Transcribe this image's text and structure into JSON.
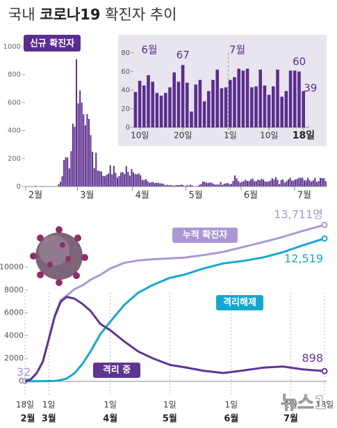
{
  "header": {
    "title_parts": [
      "국내",
      "코로나19",
      "확진자 추이"
    ]
  },
  "credit": "뉴스1",
  "chart_data": [
    {
      "type": "bar",
      "label": "신규 확진자",
      "color": "#5b2d8e",
      "values": [
        1,
        3,
        0,
        1,
        2,
        5,
        1,
        0,
        3,
        0,
        1,
        0,
        0,
        0,
        0,
        1,
        1,
        1,
        15,
        34,
        74,
        190,
        210,
        207,
        130,
        253,
        449,
        427,
        909,
        595,
        686,
        600,
        516,
        438,
        518,
        483,
        367,
        248,
        131,
        242,
        114,
        110,
        107,
        76,
        74,
        84,
        93,
        152,
        87,
        147,
        98,
        64,
        76,
        100,
        104,
        91,
        146,
        105,
        78,
        125,
        101,
        89,
        86,
        94,
        81,
        47,
        47,
        53,
        39,
        27,
        30,
        32,
        25,
        27,
        27,
        22,
        22,
        18,
        8,
        13,
        9,
        11,
        8,
        6,
        10,
        10,
        10,
        14,
        9,
        4,
        9,
        6,
        13,
        8,
        3,
        2,
        4,
        12,
        18,
        34,
        35,
        27,
        26,
        29,
        27,
        19,
        13,
        15,
        13,
        32,
        12,
        20,
        23,
        25,
        16,
        19,
        40,
        79,
        58,
        39,
        27,
        35,
        38,
        49,
        39,
        39,
        51,
        57,
        38,
        38,
        50,
        45,
        56,
        49,
        37,
        34,
        37,
        43,
        59,
        49,
        67,
        48,
        17,
        46,
        51,
        28,
        39,
        51,
        62,
        42,
        43,
        51,
        54,
        63,
        61,
        63,
        43,
        44,
        62,
        45,
        35,
        44,
        62,
        33,
        39,
        61,
        61,
        60,
        39
      ],
      "xlim": [
        0,
        169
      ],
      "xticks": [
        {
          "value": 0,
          "label": "2월"
        },
        {
          "value": 29,
          "label": "3월"
        },
        {
          "value": 60,
          "label": "4월"
        },
        {
          "value": 90,
          "label": "5월"
        },
        {
          "value": 121,
          "label": "6월"
        },
        {
          "value": 151,
          "label": "7월"
        }
      ],
      "ylim": [
        0,
        1000
      ],
      "yticks": [
        0,
        200,
        400,
        600,
        800,
        1000
      ]
    },
    {
      "type": "bar",
      "color": "#5b2d8e",
      "values": [
        38,
        50,
        45,
        56,
        49,
        37,
        34,
        37,
        43,
        59,
        49,
        67,
        48,
        17,
        46,
        51,
        28,
        39,
        51,
        62,
        42,
        43,
        51,
        54,
        63,
        61,
        63,
        43,
        44,
        62,
        45,
        35,
        44,
        62,
        33,
        39,
        61,
        61,
        60,
        39
      ],
      "value_labels": [
        null,
        null,
        null,
        null,
        null,
        null,
        null,
        null,
        null,
        null,
        null,
        "67",
        null,
        null,
        null,
        null,
        null,
        null,
        null,
        null,
        null,
        null,
        null,
        null,
        null,
        null,
        null,
        null,
        null,
        null,
        null,
        null,
        null,
        null,
        null,
        null,
        null,
        null,
        "60",
        "39"
      ],
      "month_labels": [
        "6월",
        "7월"
      ],
      "xlim": [
        0,
        40
      ],
      "xticks": [
        {
          "value": 1,
          "label": "10일"
        },
        {
          "value": 11,
          "label": "20일"
        },
        {
          "value": 22,
          "label": "1일"
        },
        {
          "value": 31,
          "label": "10일"
        },
        {
          "value": 39,
          "label": "18일"
        }
      ],
      "ylim": [
        0,
        80
      ],
      "yticks": [
        0,
        20,
        40,
        60,
        80
      ]
    },
    {
      "type": "line",
      "grid": true,
      "x": [
        0,
        3,
        6,
        9,
        12,
        15,
        18,
        21,
        25,
        29,
        33,
        38,
        43,
        50,
        57,
        64,
        73,
        80,
        90,
        100,
        110,
        120,
        130,
        140,
        151
      ],
      "xlim": [
        0,
        151
      ],
      "xticks": [
        {
          "value": 0,
          "label": "18일"
        },
        {
          "value": 12,
          "label": "1일"
        },
        {
          "value": 43,
          "label": "1일"
        },
        {
          "value": 73,
          "label": "1일"
        },
        {
          "value": 104,
          "label": "1일"
        },
        {
          "value": 134,
          "label": "1일"
        },
        {
          "value": 151,
          "label": "18일"
        }
      ],
      "xtick_months": [
        "2월",
        "3월",
        "4월",
        "5월",
        "6월",
        "7월"
      ],
      "ylim": [
        0,
        15000
      ],
      "yticks": [
        0,
        2000,
        4000,
        6000,
        8000,
        10000
      ],
      "series": [
        {
          "name": "누적 확진자",
          "color": "#ab98d3",
          "values": [
            32,
            204,
            763,
            1766,
            3736,
            5766,
            7134,
            7513,
            8086,
            8413,
            8897,
            9332,
            9887,
            10384,
            10591,
            10694,
            10774,
            10840,
            11065,
            11344,
            11776,
            12198,
            12653,
            13181,
            13711
          ],
          "value_labels": [
            "32",
            null,
            null,
            null,
            null,
            null,
            null,
            null,
            null,
            null,
            null,
            null,
            null,
            null,
            null,
            null,
            null,
            null,
            null,
            null,
            null,
            null,
            null,
            null,
            "13,711명"
          ]
        },
        {
          "name": "격리해제",
          "color": "#16a7cf",
          "values": [
            12,
            16,
            18,
            24,
            30,
            41,
            118,
            247,
            714,
            1540,
            2612,
            4144,
            5228,
            6694,
            7757,
            8411,
            9072,
            9333,
            9888,
            10340,
            10552,
            10856,
            11317,
            11914,
            12519
          ],
          "value_labels": [
            null,
            null,
            null,
            null,
            null,
            null,
            null,
            null,
            null,
            null,
            null,
            null,
            null,
            null,
            null,
            null,
            null,
            null,
            null,
            null,
            null,
            null,
            null,
            null,
            "12,519"
          ]
        },
        {
          "name": "격리 중",
          "color": "#5e3591",
          "values": [
            20,
            188,
            744,
            1729,
            3689,
            5693,
            6970,
            7400,
            7250,
            6780,
            6180,
            5030,
            4480,
            3500,
            2630,
            2050,
            1450,
            1250,
            930,
            730,
            950,
            1200,
            1300,
            1050,
            898
          ],
          "value_labels": [
            null,
            null,
            null,
            null,
            null,
            null,
            null,
            null,
            null,
            null,
            null,
            null,
            null,
            null,
            null,
            null,
            null,
            null,
            null,
            null,
            null,
            null,
            null,
            null,
            "898"
          ]
        }
      ]
    }
  ]
}
